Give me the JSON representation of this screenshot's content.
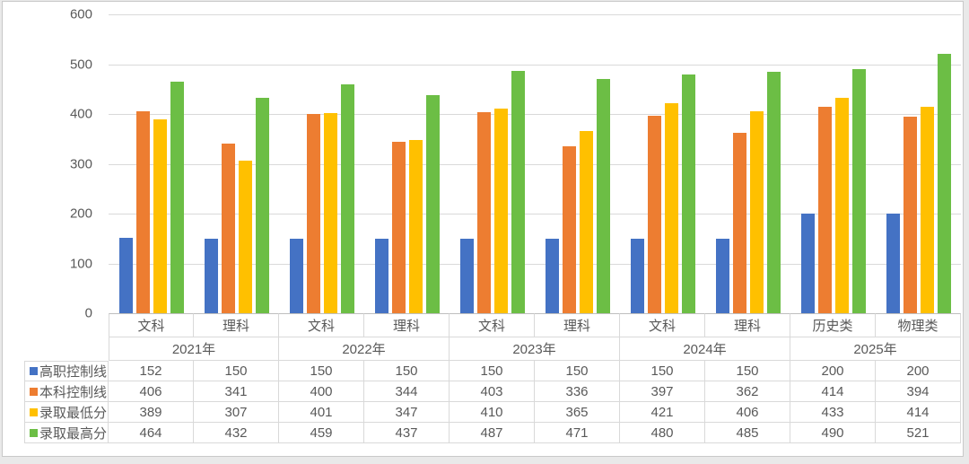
{
  "chart_data": {
    "type": "bar",
    "title": "",
    "xlabel": "",
    "ylabel": "",
    "ylim": [
      0,
      600
    ],
    "ytick_step": 100,
    "grid": true,
    "legend_position": "data-table-left",
    "categories": [
      "文科",
      "理科",
      "文科",
      "理科",
      "文科",
      "理科",
      "文科",
      "理科",
      "历史类",
      "物理类"
    ],
    "year_groups": [
      {
        "label": "2021年",
        "span": 2
      },
      {
        "label": "2022年",
        "span": 2
      },
      {
        "label": "2023年",
        "span": 2
      },
      {
        "label": "2024年",
        "span": 2
      },
      {
        "label": "2025年",
        "span": 2
      }
    ],
    "series": [
      {
        "name": "高职控制线",
        "color": "#4472C4",
        "values": [
          152,
          150,
          150,
          150,
          150,
          150,
          150,
          150,
          200,
          200
        ]
      },
      {
        "name": "本科控制线",
        "color": "#ED7D31",
        "values": [
          406,
          341,
          400,
          344,
          403,
          336,
          397,
          362,
          414,
          394
        ]
      },
      {
        "name": "录取最低分",
        "color": "#FFC000",
        "values": [
          389,
          307,
          401,
          347,
          410,
          365,
          421,
          406,
          433,
          414
        ]
      },
      {
        "name": "录取最高分",
        "color": "#6CBE45",
        "values": [
          464,
          432,
          459,
          437,
          487,
          471,
          480,
          485,
          490,
          521
        ]
      }
    ]
  },
  "colors": {
    "grid_line": "#d9d9d9",
    "axis_line": "#bfbfbf",
    "text": "#595959",
    "frame_border": "#c9c9c9",
    "background": "#ffffff"
  }
}
